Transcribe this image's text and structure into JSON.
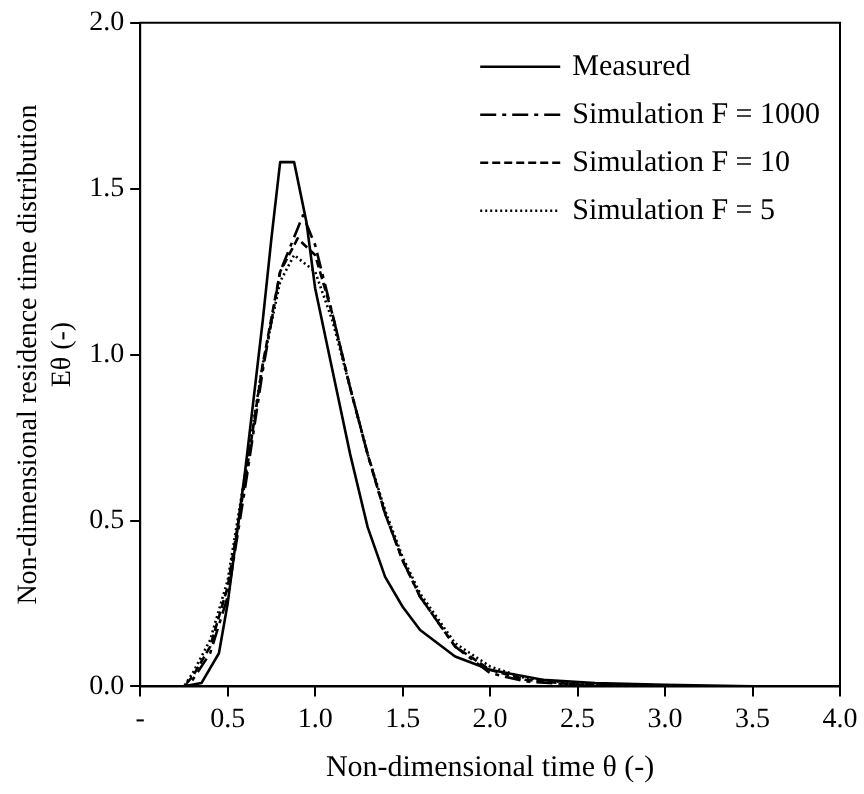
{
  "chart_data": {
    "type": "line",
    "xlabel": "Non-dimensional time θ (-)",
    "ylabel": "Non-dimensional residence time distribution\nEθ (-)",
    "xlim": [
      0,
      4
    ],
    "xticks": [
      {
        "value": 0,
        "label": "-"
      },
      0.5,
      {
        "value": 1,
        "label": "1.0"
      },
      1.5,
      {
        "value": 2,
        "label": "2.0"
      },
      2.5,
      {
        "value": 3,
        "label": "3.0"
      },
      3.5,
      {
        "value": 4,
        "label": "4.0"
      }
    ],
    "ylim": [
      0,
      2
    ],
    "yticks": [
      {
        "value": 0,
        "label": "0.0"
      },
      0.5,
      {
        "value": 1,
        "label": "1.0"
      },
      1.5,
      {
        "value": 2,
        "label": "2.0"
      }
    ],
    "grid": false,
    "legend": "top right",
    "marker": "none",
    "series": [
      {
        "name": "Measured",
        "color": "#000000",
        "line_style": "solid",
        "x": [
          0,
          0.25,
          0.35,
          0.45,
          0.5,
          0.6,
          0.7,
          0.75,
          0.8,
          0.88,
          0.95,
          1.0,
          1.1,
          1.2,
          1.3,
          1.4,
          1.5,
          1.6,
          1.8,
          2.0,
          2.3,
          2.6,
          3.0,
          3.5,
          4.0
        ],
        "values": [
          0,
          0,
          0.01,
          0.1,
          0.25,
          0.65,
          1.1,
          1.35,
          1.58,
          1.58,
          1.4,
          1.2,
          0.95,
          0.7,
          0.48,
          0.33,
          0.24,
          0.17,
          0.09,
          0.05,
          0.02,
          0.01,
          0.005,
          0,
          0
        ]
      },
      {
        "name": "Simulation F = 1000",
        "color": "#000000",
        "line_style": "dashdot",
        "x": [
          0,
          0.25,
          0.3,
          0.4,
          0.5,
          0.6,
          0.7,
          0.8,
          0.9,
          0.93,
          1.0,
          1.1,
          1.2,
          1.3,
          1.4,
          1.5,
          1.6,
          1.8,
          2.0,
          2.2,
          2.5,
          3.0,
          4.0
        ],
        "values": [
          0,
          0,
          0.02,
          0.1,
          0.27,
          0.6,
          0.95,
          1.25,
          1.38,
          1.42,
          1.33,
          1.12,
          0.9,
          0.7,
          0.52,
          0.38,
          0.27,
          0.12,
          0.04,
          0.015,
          0.005,
          0,
          0
        ]
      },
      {
        "name": "Simulation F = 10",
        "color": "#000000",
        "line_style": "dashed",
        "x": [
          0,
          0.25,
          0.3,
          0.4,
          0.5,
          0.6,
          0.7,
          0.8,
          0.9,
          1.0,
          1.1,
          1.2,
          1.3,
          1.4,
          1.5,
          1.6,
          1.8,
          2.0,
          2.2,
          2.5,
          3.0,
          4.0
        ],
        "values": [
          0,
          0,
          0.03,
          0.12,
          0.3,
          0.62,
          0.97,
          1.25,
          1.35,
          1.3,
          1.12,
          0.9,
          0.7,
          0.52,
          0.38,
          0.27,
          0.12,
          0.05,
          0.02,
          0.005,
          0,
          0
        ]
      },
      {
        "name": "Simulation F = 5",
        "color": "#000000",
        "line_style": "dotted",
        "x": [
          0,
          0.25,
          0.3,
          0.4,
          0.5,
          0.6,
          0.7,
          0.8,
          0.88,
          1.0,
          1.1,
          1.2,
          1.3,
          1.4,
          1.5,
          1.6,
          1.8,
          2.0,
          2.2,
          2.5,
          3.0,
          4.0
        ],
        "values": [
          0,
          0,
          0.04,
          0.14,
          0.32,
          0.64,
          0.97,
          1.22,
          1.3,
          1.25,
          1.1,
          0.9,
          0.7,
          0.53,
          0.39,
          0.28,
          0.13,
          0.06,
          0.025,
          0.008,
          0,
          0
        ]
      }
    ]
  }
}
